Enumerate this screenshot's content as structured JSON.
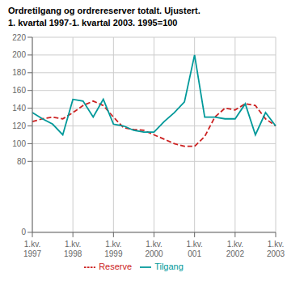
{
  "chart_data": {
    "type": "line",
    "title": "Ordretilgang og ordrereserver totalt. Ujustert.",
    "subtitle": "1. kvartal 1997-1. kvartal 2003. 1995=100",
    "categories": [
      "1.kv.\n1997",
      null,
      null,
      null,
      "1.kv.\n1998",
      null,
      null,
      null,
      "1.kv.\n1999",
      null,
      null,
      null,
      "1.kv.\n2000",
      null,
      null,
      null,
      "1.kv.\n001",
      null,
      null,
      null,
      "1.kv.\n2002",
      null,
      null,
      null,
      "1.kv.\n2003"
    ],
    "series": [
      {
        "name": "Reserve",
        "color": "#cc2222",
        "line_style": "dashed",
        "values": [
          125,
          128,
          130,
          128,
          135,
          143,
          148,
          143,
          130,
          118,
          116,
          115,
          110,
          105,
          100,
          97,
          97,
          108,
          130,
          140,
          138,
          145,
          143,
          128,
          120
        ]
      },
      {
        "name": "Tilgang",
        "color": "#00999a",
        "line_style": "solid",
        "values": [
          135,
          128,
          122,
          110,
          150,
          148,
          130,
          150,
          122,
          120,
          115,
          113,
          113,
          125,
          135,
          147,
          200,
          130,
          130,
          128,
          128,
          145,
          110,
          135,
          120
        ]
      }
    ],
    "ylim": [
      0,
      220
    ],
    "yticks": [
      0,
      80,
      100,
      120,
      140,
      160,
      180,
      200,
      220
    ],
    "grid": true,
    "legend": "bottom"
  }
}
